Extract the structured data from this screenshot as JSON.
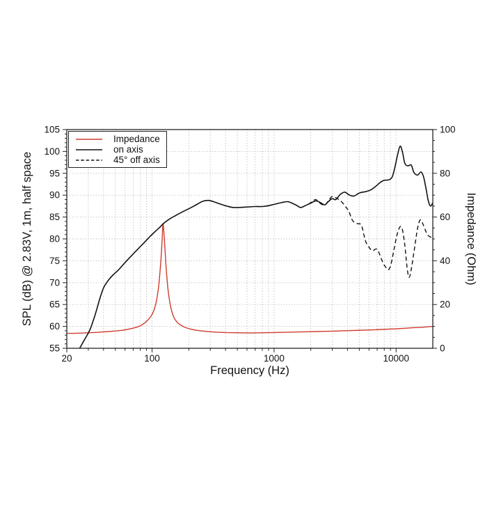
{
  "chart_data": {
    "type": "line",
    "title": "",
    "xlabel": "Frequency (Hz)",
    "ylabel_left": "SPL (dB) @ 2.83V, 1m, half space",
    "ylabel_right": "Impedance (Ohm)",
    "x_scale": "log",
    "xlim": [
      20,
      20000
    ],
    "x_ticks_labeled": [
      "20",
      "100",
      "1000",
      "10000"
    ],
    "x_tick_values": [
      20,
      100,
      1000,
      10000
    ],
    "ylim_left": [
      55,
      105
    ],
    "y_ticks_left": [
      55,
      60,
      65,
      70,
      75,
      80,
      85,
      90,
      95,
      100,
      105
    ],
    "ylim_right": [
      0,
      100
    ],
    "y_ticks_right": [
      0,
      20,
      40,
      60,
      80,
      100
    ],
    "grid": true,
    "grid_color": "#b3b3b3",
    "legend_position": "top-left",
    "series": [
      {
        "name": "Impedance",
        "axis": "right",
        "color": "#cf3b2e",
        "style": "solid",
        "points": [
          [
            20,
            6.8
          ],
          [
            25,
            6.9
          ],
          [
            30,
            7.1
          ],
          [
            36,
            7.3
          ],
          [
            43,
            7.6
          ],
          [
            50,
            7.9
          ],
          [
            60,
            8.4
          ],
          [
            70,
            9.2
          ],
          [
            80,
            10.3
          ],
          [
            90,
            12.3
          ],
          [
            100,
            15.5
          ],
          [
            107,
            20
          ],
          [
            113,
            28
          ],
          [
            118,
            40
          ],
          [
            121,
            50
          ],
          [
            123,
            57
          ],
          [
            126,
            50
          ],
          [
            130,
            38
          ],
          [
            135,
            27
          ],
          [
            142,
            19
          ],
          [
            150,
            14.5
          ],
          [
            160,
            12
          ],
          [
            175,
            10.3
          ],
          [
            190,
            9.4
          ],
          [
            210,
            8.7
          ],
          [
            240,
            8.1
          ],
          [
            280,
            7.7
          ],
          [
            330,
            7.4
          ],
          [
            400,
            7.2
          ],
          [
            500,
            7.1
          ],
          [
            630,
            7.05
          ],
          [
            800,
            7.1
          ],
          [
            1000,
            7.2
          ],
          [
            1300,
            7.35
          ],
          [
            1700,
            7.5
          ],
          [
            2200,
            7.65
          ],
          [
            3000,
            7.85
          ],
          [
            4000,
            8.05
          ],
          [
            5500,
            8.3
          ],
          [
            7500,
            8.6
          ],
          [
            10000,
            8.9
          ],
          [
            13000,
            9.3
          ],
          [
            16000,
            9.6
          ],
          [
            20000,
            10
          ]
        ]
      },
      {
        "name": "on axis",
        "axis": "left",
        "color": "#111111",
        "style": "solid",
        "points": [
          [
            25.5,
            55
          ],
          [
            28,
            57
          ],
          [
            31,
            59.3
          ],
          [
            34,
            62.5
          ],
          [
            37,
            66
          ],
          [
            40,
            68.8
          ],
          [
            44,
            70.6
          ],
          [
            48,
            71.8
          ],
          [
            53,
            72.9
          ],
          [
            60,
            74.6
          ],
          [
            68,
            76.2
          ],
          [
            76,
            77.6
          ],
          [
            85,
            79
          ],
          [
            95,
            80.4
          ],
          [
            105,
            81.6
          ],
          [
            115,
            82.6
          ],
          [
            125,
            83.6
          ],
          [
            140,
            84.6
          ],
          [
            155,
            85.3
          ],
          [
            175,
            86.1
          ],
          [
            200,
            86.9
          ],
          [
            230,
            87.8
          ],
          [
            260,
            88.6
          ],
          [
            290,
            88.8
          ],
          [
            320,
            88.5
          ],
          [
            360,
            88
          ],
          [
            410,
            87.5
          ],
          [
            460,
            87.2
          ],
          [
            520,
            87.2
          ],
          [
            600,
            87.3
          ],
          [
            700,
            87.4
          ],
          [
            800,
            87.4
          ],
          [
            900,
            87.6
          ],
          [
            1000,
            87.9
          ],
          [
            1150,
            88.3
          ],
          [
            1300,
            88.5
          ],
          [
            1500,
            87.8
          ],
          [
            1650,
            87.2
          ],
          [
            1800,
            87.6
          ],
          [
            2000,
            88.2
          ],
          [
            2200,
            88.7
          ],
          [
            2400,
            88.3
          ],
          [
            2600,
            87.8
          ],
          [
            2800,
            88.6
          ],
          [
            3000,
            89.2
          ],
          [
            3200,
            89
          ],
          [
            3500,
            90.2
          ],
          [
            3800,
            90.7
          ],
          [
            4100,
            90.1
          ],
          [
            4500,
            89.8
          ],
          [
            5000,
            90.5
          ],
          [
            5600,
            90.8
          ],
          [
            6200,
            91.2
          ],
          [
            6800,
            92
          ],
          [
            7400,
            92.9
          ],
          [
            8000,
            93.4
          ],
          [
            8700,
            93.5
          ],
          [
            9300,
            94.2
          ],
          [
            9800,
            96.5
          ],
          [
            10300,
            99.3
          ],
          [
            10800,
            101.2
          ],
          [
            11300,
            99.8
          ],
          [
            11800,
            97.3
          ],
          [
            12500,
            96.7
          ],
          [
            13300,
            96.9
          ],
          [
            14000,
            95.2
          ],
          [
            15000,
            94.6
          ],
          [
            16000,
            95.3
          ],
          [
            16800,
            94.2
          ],
          [
            17600,
            91.5
          ],
          [
            18400,
            88.6
          ],
          [
            19200,
            87.5
          ],
          [
            19900,
            88.2
          ]
        ]
      },
      {
        "name": "45° off axis",
        "axis": "left",
        "color": "#111111",
        "style": "dashed",
        "points": [
          [
            1900,
            87.9
          ],
          [
            2050,
            88.5
          ],
          [
            2200,
            89
          ],
          [
            2400,
            88.1
          ],
          [
            2600,
            87.7
          ],
          [
            2800,
            88.8
          ],
          [
            3000,
            89.7
          ],
          [
            3300,
            89.2
          ],
          [
            3600,
            88.4
          ],
          [
            3900,
            87.2
          ],
          [
            4100,
            86.3
          ],
          [
            4400,
            84.2
          ],
          [
            4800,
            83.5
          ],
          [
            5200,
            83.1
          ],
          [
            5600,
            79.6
          ],
          [
            6000,
            78.1
          ],
          [
            6400,
            77.3
          ],
          [
            6900,
            77.7
          ],
          [
            7300,
            76.6
          ],
          [
            7800,
            74.6
          ],
          [
            8300,
            73.4
          ],
          [
            8700,
            73
          ],
          [
            9100,
            74.3
          ],
          [
            9600,
            77.5
          ],
          [
            10200,
            81
          ],
          [
            10800,
            82.8
          ],
          [
            11300,
            82
          ],
          [
            11800,
            78.5
          ],
          [
            12300,
            73.5
          ],
          [
            12800,
            71.2
          ],
          [
            13400,
            73.5
          ],
          [
            14100,
            77.5
          ],
          [
            14900,
            82
          ],
          [
            15500,
            84
          ],
          [
            16000,
            84.3
          ],
          [
            16700,
            83.2
          ],
          [
            17500,
            81.8
          ],
          [
            18300,
            80.8
          ],
          [
            19900,
            80.2
          ]
        ]
      }
    ]
  }
}
